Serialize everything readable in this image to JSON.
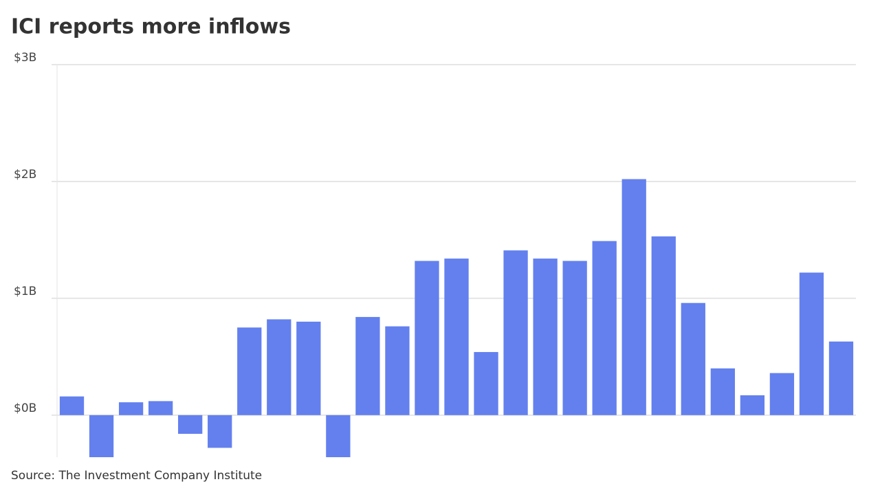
{
  "chart_data": {
    "type": "bar",
    "title": "ICI reports more inflows",
    "source": "Source: The Investment Company Institute",
    "categories": [
      null,
      null,
      null,
      null,
      null,
      null,
      null,
      null,
      null,
      null,
      null,
      null,
      null,
      null,
      null,
      null,
      null,
      null,
      null,
      null,
      null,
      null,
      null,
      null,
      null,
      null,
      null
    ],
    "values": [
      0.16,
      -0.36,
      0.11,
      0.12,
      -0.16,
      -0.28,
      0.75,
      0.82,
      0.8,
      -0.36,
      0.84,
      0.76,
      1.32,
      1.34,
      0.54,
      1.41,
      1.34,
      1.32,
      1.49,
      2.02,
      1.53,
      0.96,
      0.4,
      0.17,
      0.36,
      1.22,
      0.63
    ],
    "color": "#6380ee",
    "ylim": [
      -0.36,
      3
    ],
    "yticks": [
      {
        "value": 0,
        "label": "$0B"
      },
      {
        "value": 1,
        "label": "$1B"
      },
      {
        "value": 2,
        "label": "$2B"
      },
      {
        "value": 3,
        "label": "$3B"
      }
    ],
    "grid": true
  }
}
